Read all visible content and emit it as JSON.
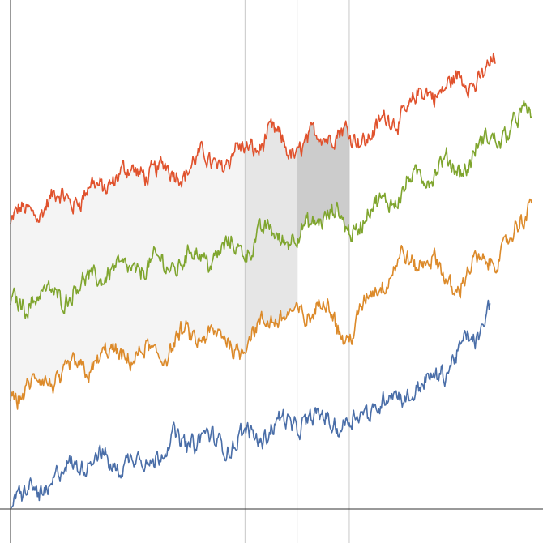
{
  "chart_data": {
    "type": "line",
    "title": "",
    "xlabel": "",
    "ylabel": "",
    "grid": false,
    "legend": "none",
    "xlim": [
      0,
      100
    ],
    "ylim": [
      0,
      100
    ],
    "vertical_markers": [
      45,
      55,
      65
    ],
    "bands": [
      {
        "series": "orange_to_red",
        "x0": 0,
        "x1": 45,
        "fill": "#f4f4f4"
      },
      {
        "series": "orange_to_red",
        "x0": 45,
        "x1": 55,
        "fill": "#e6e6e6"
      },
      {
        "series": "green_to_red",
        "x0": 55,
        "x1": 65,
        "fill": "#cccccc"
      }
    ],
    "series": [
      {
        "key": "red",
        "color": "#e0522d",
        "x": [
          0,
          5,
          10,
          15,
          20,
          25,
          30,
          35,
          40,
          45,
          50,
          55,
          60,
          65,
          70,
          75,
          80,
          85,
          90,
          93
        ],
        "values": [
          59,
          62,
          64,
          67,
          68,
          69,
          71,
          73,
          72,
          74,
          78,
          75,
          78,
          77,
          80,
          83,
          85,
          88,
          91,
          93
        ]
      },
      {
        "key": "green",
        "color": "#7fa52e",
        "x": [
          0,
          5,
          10,
          15,
          20,
          25,
          30,
          35,
          40,
          45,
          50,
          55,
          60,
          65,
          70,
          75,
          80,
          85,
          90,
          95,
          100
        ],
        "values": [
          41,
          44,
          46,
          48,
          49,
          50,
          52,
          53,
          52,
          55,
          59,
          56,
          60,
          59,
          63,
          66,
          69,
          71,
          75,
          78,
          82
        ]
      },
      {
        "key": "orange",
        "color": "#dc8a2a",
        "x": [
          0,
          5,
          10,
          15,
          20,
          25,
          30,
          35,
          40,
          45,
          50,
          55,
          60,
          65,
          70,
          75,
          80,
          85,
          90,
          95,
          100
        ],
        "values": [
          23,
          26,
          28,
          30,
          31,
          32,
          34,
          35,
          34,
          36,
          40,
          39,
          42,
          37,
          46,
          50,
          52,
          47,
          51,
          52,
          65
        ]
      },
      {
        "key": "blue",
        "color": "#4a6ea8",
        "x": [
          0,
          5,
          10,
          15,
          20,
          25,
          30,
          35,
          40,
          45,
          50,
          55,
          60,
          65,
          70,
          75,
          80,
          85,
          90,
          92
        ],
        "values": [
          2,
          5,
          7,
          9,
          10,
          11,
          13,
          14,
          14,
          15,
          17,
          17,
          20,
          19,
          21,
          23,
          27,
          31,
          36,
          42
        ]
      }
    ]
  }
}
